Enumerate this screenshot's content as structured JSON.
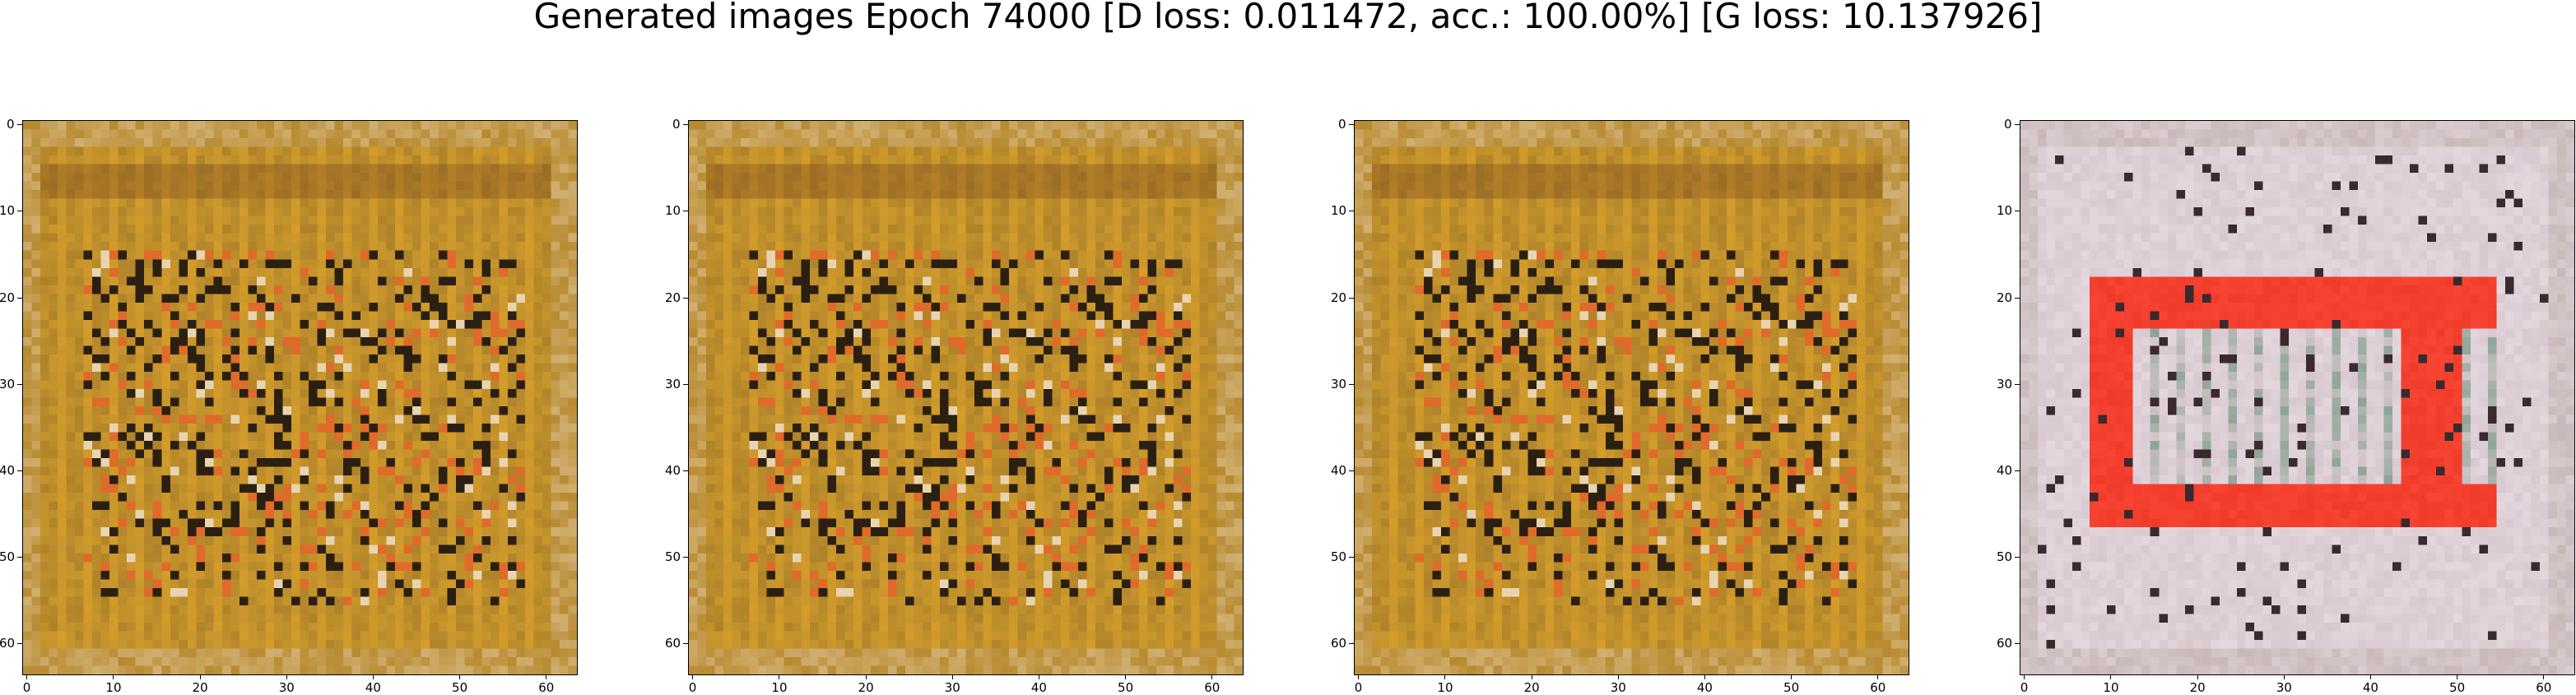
{
  "figure": {
    "suptitle": "Generated images Epoch 74000 [D loss: 0.011472, acc.: 100.00%] [G loss: 10.137926]"
  },
  "axes": {
    "x_ticks": [
      "0",
      "10",
      "20",
      "30",
      "40",
      "50",
      "60"
    ],
    "y_ticks": [
      "0",
      "10",
      "20",
      "30",
      "40",
      "50",
      "60"
    ],
    "pixel_extent": 64
  },
  "panels": [
    {
      "name": "generated-image-1",
      "variant": "mustard",
      "colors": {
        "base": "#c8962c",
        "dark": "#2a1f10",
        "accent": "#e06a2a",
        "light": "#e8d4b0",
        "border": "#b88a30"
      }
    },
    {
      "name": "generated-image-2",
      "variant": "mustard",
      "colors": {
        "base": "#c8962c",
        "dark": "#2a1f10",
        "accent": "#e06a2a",
        "light": "#e8d4b0",
        "border": "#b88a30"
      }
    },
    {
      "name": "generated-image-3",
      "variant": "mustard",
      "colors": {
        "base": "#c8962c",
        "dark": "#2a1f10",
        "accent": "#e06a2a",
        "light": "#e8d4b0",
        "border": "#b88a30"
      }
    },
    {
      "name": "generated-image-4",
      "variant": "pale-red",
      "colors": {
        "base": "#d8c8d0",
        "dark": "#3a2a30",
        "accent": "#f03a2a",
        "light": "#ece0e6",
        "border": "#c8b8b8"
      }
    }
  ]
}
